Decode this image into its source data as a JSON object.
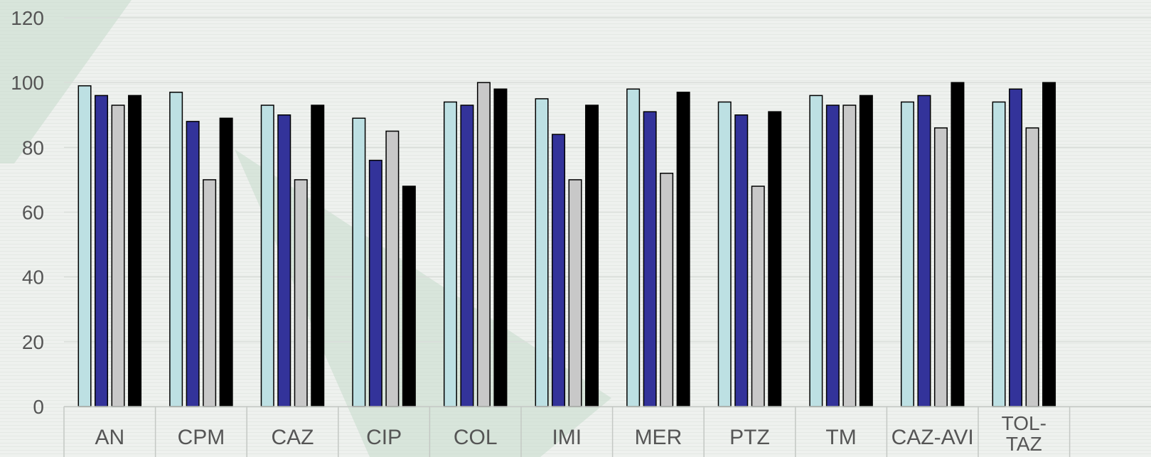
{
  "chart_data": {
    "type": "bar",
    "categories": [
      "AN",
      "CPM",
      "CAZ",
      "CIP",
      "COL",
      "IMI",
      "MER",
      "PTZ",
      "TM",
      "CAZ-AVI",
      "TOL-TAZ"
    ],
    "category_label_lines": [
      [
        "AN"
      ],
      [
        "CPM"
      ],
      [
        "CAZ"
      ],
      [
        "CIP"
      ],
      [
        "COL"
      ],
      [
        "IMI"
      ],
      [
        "MER"
      ],
      [
        "PTZ"
      ],
      [
        "TM"
      ],
      [
        "CAZ-AVI"
      ],
      [
        "TOL-",
        "TAZ"
      ]
    ],
    "series": [
      {
        "color": "#bde0e3",
        "values": [
          99,
          97,
          93,
          89,
          94,
          95,
          98,
          94,
          96,
          94,
          94
        ]
      },
      {
        "color": "#33339a",
        "values": [
          96,
          88,
          90,
          76,
          93,
          84,
          91,
          90,
          93,
          96,
          98
        ]
      },
      {
        "color": "#c8c8c8",
        "values": [
          93,
          70,
          70,
          85,
          100,
          70,
          72,
          68,
          93,
          86,
          86
        ]
      },
      {
        "color": "#000000",
        "values": [
          96,
          89,
          93,
          68,
          98,
          93,
          97,
          91,
          96,
          100,
          100
        ]
      }
    ],
    "y_ticks": [
      "0",
      "20",
      "40",
      "60",
      "80",
      "100",
      "120"
    ],
    "ylim": [
      0,
      120
    ],
    "grid": true,
    "legend": "none"
  }
}
